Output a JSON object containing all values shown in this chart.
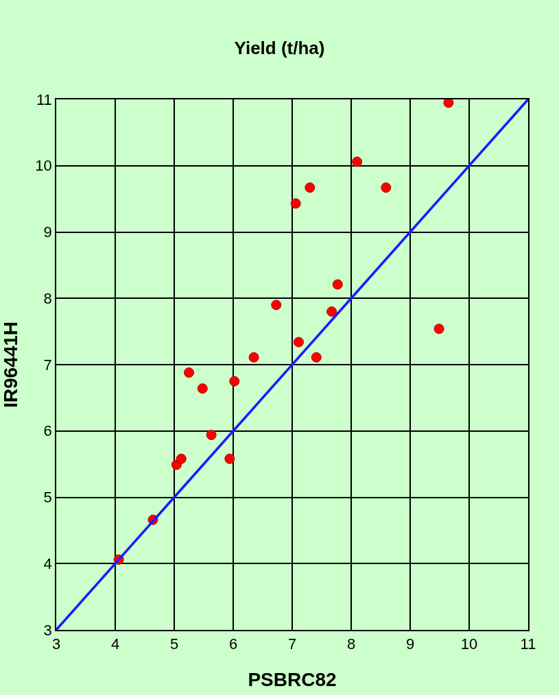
{
  "chart_data": {
    "type": "scatter",
    "title": "Yield (t/ha)",
    "xlabel": "PSBRC82",
    "ylabel": "IR96441H",
    "xlim": [
      3,
      11
    ],
    "ylim": [
      3,
      11
    ],
    "xticks": [
      3,
      4,
      5,
      6,
      7,
      8,
      9,
      10,
      11
    ],
    "yticks": [
      3,
      4,
      5,
      6,
      7,
      8,
      9,
      10,
      11
    ],
    "grid": true,
    "legend": false,
    "series": [
      {
        "color": "#ff0000",
        "marker": "circle",
        "x": [
          4.06,
          4.64,
          5.04,
          5.12,
          5.25,
          5.48,
          5.63,
          5.94,
          6.02,
          6.35,
          6.73,
          7.06,
          7.11,
          7.3,
          7.41,
          7.67,
          7.77,
          8.1,
          8.59,
          9.49,
          9.65
        ],
        "values": [
          4.06,
          4.66,
          5.49,
          5.58,
          6.88,
          6.64,
          5.94,
          5.58,
          6.75,
          7.11,
          7.9,
          9.43,
          7.34,
          9.67,
          7.11,
          7.8,
          8.21,
          10.06,
          9.67,
          7.54,
          10.95
        ]
      },
      {
        "type": "line",
        "color": "#1a1aff",
        "marker": "none",
        "line_style": "solid",
        "x": [
          3,
          11
        ],
        "values": [
          3,
          11
        ]
      }
    ]
  }
}
